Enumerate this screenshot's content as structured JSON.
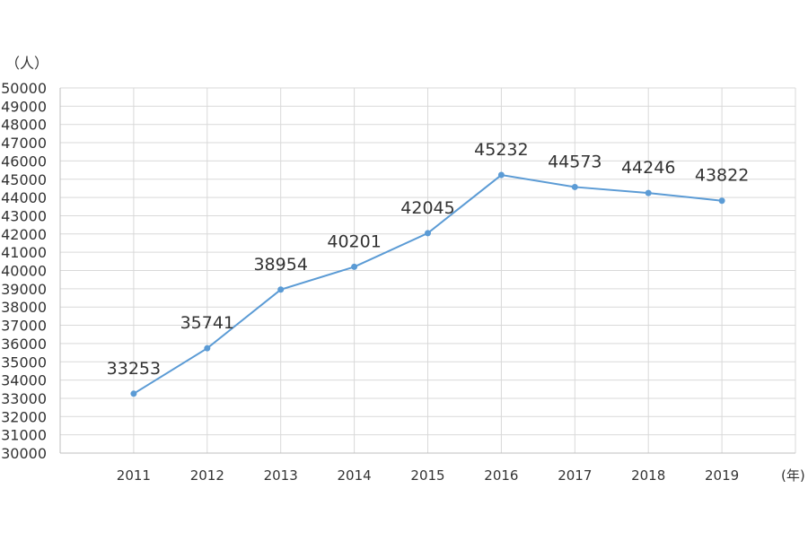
{
  "chart_data": {
    "type": "line",
    "ylabel": "（人）",
    "xlabel": "(年)",
    "categories": [
      "2011",
      "2012",
      "2013",
      "2014",
      "2015",
      "2016",
      "2017",
      "2018",
      "2019"
    ],
    "series": [
      {
        "values": [
          33253,
          35741,
          38954,
          40201,
          42045,
          45232,
          44573,
          44246,
          43822
        ]
      }
    ],
    "ylim": [
      30000,
      50000
    ],
    "ytick_step": 1000,
    "grid": true,
    "data_labels": true,
    "line_color": "#5b9bd5",
    "legend": "none"
  }
}
